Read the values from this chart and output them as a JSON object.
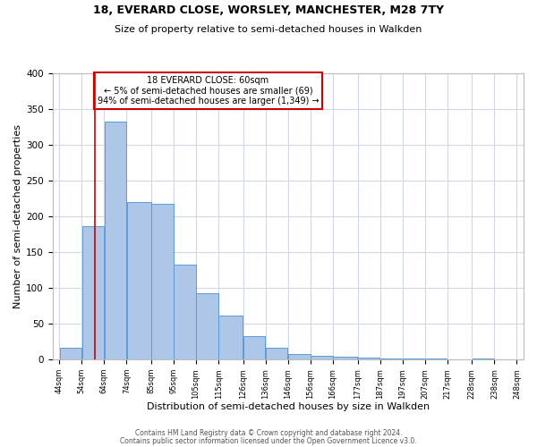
{
  "title_line1": "18, EVERARD CLOSE, WORSLEY, MANCHESTER, M28 7TY",
  "title_line2": "Size of property relative to semi-detached houses in Walkden",
  "xlabel": "Distribution of semi-detached houses by size in Walkden",
  "ylabel": "Number of semi-detached properties",
  "footer_line1": "Contains HM Land Registry data © Crown copyright and database right 2024.",
  "footer_line2": "Contains public sector information licensed under the Open Government Licence v3.0.",
  "annotation_line1": "18 EVERARD CLOSE: 60sqm",
  "annotation_line2": "← 5% of semi-detached houses are smaller (69)",
  "annotation_line3": "94% of semi-detached houses are larger (1,349) →",
  "property_line_x": 60,
  "bar_edges": [
    44,
    54,
    64,
    74,
    85,
    95,
    105,
    115,
    126,
    136,
    146,
    156,
    166,
    177,
    187,
    197,
    207,
    217,
    228,
    238,
    248
  ],
  "bar_heights": [
    16,
    186,
    332,
    220,
    218,
    133,
    93,
    61,
    33,
    16,
    8,
    5,
    4,
    3,
    2,
    1,
    1,
    0,
    1,
    0
  ],
  "bar_color": "#aec6e8",
  "bar_edge_color": "#5b9bd5",
  "property_line_color": "#cc0000",
  "annotation_box_edge_color": "#cc0000",
  "background_color": "#ffffff",
  "grid_color": "#d0d8e8",
  "ylim": [
    0,
    400
  ],
  "yticks": [
    0,
    50,
    100,
    150,
    200,
    250,
    300,
    350,
    400
  ]
}
